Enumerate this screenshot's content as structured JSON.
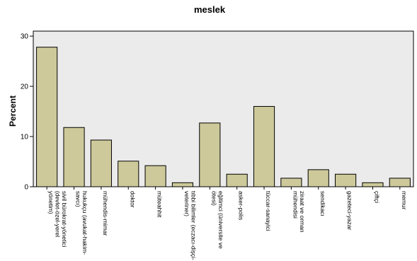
{
  "chart_data": {
    "type": "bar",
    "title": "meslek",
    "ylabel": "Percent",
    "xlabel": "",
    "ylim": [
      0,
      31
    ],
    "yticks": [
      0,
      10,
      20,
      30
    ],
    "grid": false,
    "colors": {
      "bar": "#cdc99a",
      "plot_background": "#ebebeb"
    },
    "categories": [
      [
        "sivil bürokrat-yönetici",
        "(devlet-özel-yerel",
        "yönetim)"
      ],
      [
        "hukukçu (avukat-hakim-",
        "savcı)"
      ],
      [
        "mühendis-mimar"
      ],
      [
        "doktor"
      ],
      [
        "müteahhit"
      ],
      [
        "tıbbi bilimler (eczacı-dişçi-",
        "veteriner)"
      ],
      [
        "eğitimci (üniversite ve",
        "ötesi)"
      ],
      [
        "asker-polis"
      ],
      [
        "tüccar-sanayici"
      ],
      [
        "ziraat ve orman",
        "mühendisi"
      ],
      [
        "sendikacı"
      ],
      [
        "gazeteci-yazar"
      ],
      [
        "çiftçi"
      ],
      [
        "memur"
      ]
    ],
    "values": [
      27.8,
      11.8,
      9.3,
      5.1,
      4.2,
      0.8,
      12.7,
      2.5,
      16.0,
      1.7,
      3.4,
      2.5,
      0.8,
      1.7
    ]
  }
}
